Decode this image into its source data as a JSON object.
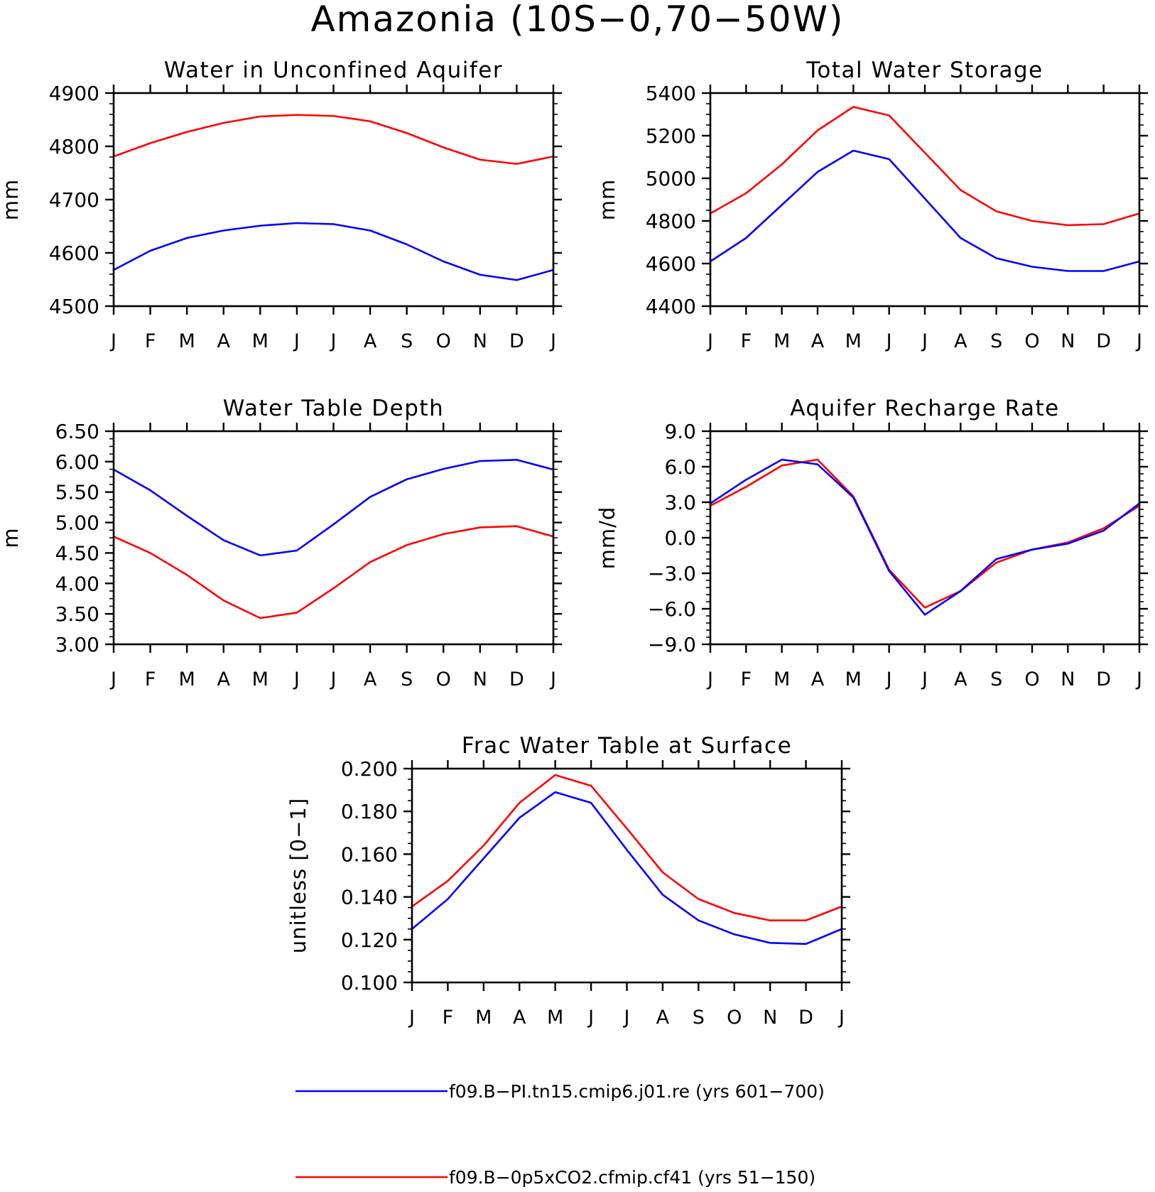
{
  "figure": {
    "title": "Amazonia (10S−0,70−50W)"
  },
  "legend": [
    {
      "name": "f09.B−PI.tn15.cmip6.j01.re (yrs 601−700)",
      "color": "#0000ff"
    },
    {
      "name": "f09.B−0p5xCO2.cfmip.cf41 (yrs 51−150)",
      "color": "#ff0000"
    }
  ],
  "chart_data": [
    {
      "type": "line",
      "title": "Water in Unconfined Aquifer",
      "ylabel": "mm",
      "categories": [
        "J",
        "F",
        "M",
        "A",
        "M",
        "J",
        "J",
        "A",
        "S",
        "O",
        "N",
        "D",
        "J"
      ],
      "ylim": [
        4500,
        4900
      ],
      "yticks": [
        "4500",
        "4600",
        "4700",
        "4800",
        "4900"
      ],
      "yminor": 5,
      "grid": false,
      "series": [
        {
          "color": "#0000ff",
          "values": [
            4568,
            4604,
            4628,
            4642,
            4651,
            4656,
            4654,
            4642,
            4616,
            4584,
            4559,
            4549,
            4568
          ]
        },
        {
          "color": "#ff0000",
          "values": [
            4781,
            4806,
            4827,
            4844,
            4856,
            4859,
            4857,
            4847,
            4825,
            4798,
            4775,
            4767,
            4781
          ]
        }
      ]
    },
    {
      "type": "line",
      "title": "Total Water Storage",
      "ylabel": "mm",
      "categories": [
        "J",
        "F",
        "M",
        "A",
        "M",
        "J",
        "J",
        "A",
        "S",
        "O",
        "N",
        "D",
        "J"
      ],
      "ylim": [
        4400,
        5400
      ],
      "yticks": [
        "4400",
        "4600",
        "4800",
        "5000",
        "5200",
        "5400"
      ],
      "yminor": 4,
      "grid": false,
      "series": [
        {
          "color": "#0000ff",
          "values": [
            4610,
            4720,
            4875,
            5030,
            5130,
            5090,
            4905,
            4720,
            4625,
            4585,
            4565,
            4565,
            4610
          ]
        },
        {
          "color": "#ff0000",
          "values": [
            4835,
            4930,
            5065,
            5225,
            5335,
            5295,
            5120,
            4945,
            4845,
            4800,
            4780,
            4785,
            4835
          ]
        }
      ]
    },
    {
      "type": "line",
      "title": "Water Table Depth",
      "ylabel": "m",
      "categories": [
        "J",
        "F",
        "M",
        "A",
        "M",
        "J",
        "J",
        "A",
        "S",
        "O",
        "N",
        "D",
        "J"
      ],
      "ylim": [
        3.0,
        6.5
      ],
      "yticks": [
        "3.00",
        "3.50",
        "4.00",
        "4.50",
        "5.00",
        "5.50",
        "6.00",
        "6.50"
      ],
      "yminor": 4,
      "grid": false,
      "series": [
        {
          "color": "#0000ff",
          "values": [
            5.87,
            5.53,
            5.11,
            4.71,
            4.46,
            4.54,
            4.97,
            5.42,
            5.71,
            5.88,
            6.01,
            6.03,
            5.87
          ]
        },
        {
          "color": "#ff0000",
          "values": [
            4.77,
            4.5,
            4.14,
            3.72,
            3.43,
            3.52,
            3.92,
            4.35,
            4.63,
            4.81,
            4.92,
            4.94,
            4.77
          ]
        }
      ]
    },
    {
      "type": "line",
      "title": "Aquifer Recharge Rate",
      "ylabel": "mm/d",
      "categories": [
        "J",
        "F",
        "M",
        "A",
        "M",
        "J",
        "J",
        "A",
        "S",
        "O",
        "N",
        "D",
        "J"
      ],
      "ylim": [
        -9.0,
        9.0
      ],
      "yticks": [
        "−9.0",
        "−6.0",
        "−3.0",
        "0.0",
        "3.0",
        "6.0",
        "9.0"
      ],
      "yminor": 5,
      "grid": false,
      "series": [
        {
          "color": "#ff0000",
          "values": [
            2.7,
            4.3,
            6.1,
            6.6,
            3.5,
            -2.7,
            -5.9,
            -4.5,
            -2.1,
            -1.0,
            -0.4,
            0.8,
            2.7
          ]
        },
        {
          "color": "#0000ff",
          "values": [
            2.9,
            4.9,
            6.6,
            6.2,
            3.4,
            -2.8,
            -6.5,
            -4.5,
            -1.8,
            -1.0,
            -0.5,
            0.6,
            2.9
          ]
        }
      ]
    },
    {
      "type": "line",
      "title": "Frac Water Table at Surface",
      "ylabel": "unitless [0−1]",
      "categories": [
        "J",
        "F",
        "M",
        "A",
        "M",
        "J",
        "J",
        "A",
        "S",
        "O",
        "N",
        "D",
        "J"
      ],
      "ylim": [
        0.1,
        0.2
      ],
      "yticks": [
        "0.100",
        "0.120",
        "0.140",
        "0.160",
        "0.180",
        "0.200"
      ],
      "yminor": 4,
      "grid": false,
      "series": [
        {
          "color": "#0000ff",
          "values": [
            0.125,
            0.139,
            0.158,
            0.177,
            0.189,
            0.184,
            0.162,
            0.141,
            0.129,
            0.1225,
            0.1185,
            0.118,
            0.125
          ]
        },
        {
          "color": "#ff0000",
          "values": [
            0.1355,
            0.1475,
            0.164,
            0.184,
            0.197,
            0.192,
            0.172,
            0.1515,
            0.139,
            0.1325,
            0.129,
            0.129,
            0.1355
          ]
        }
      ]
    }
  ]
}
